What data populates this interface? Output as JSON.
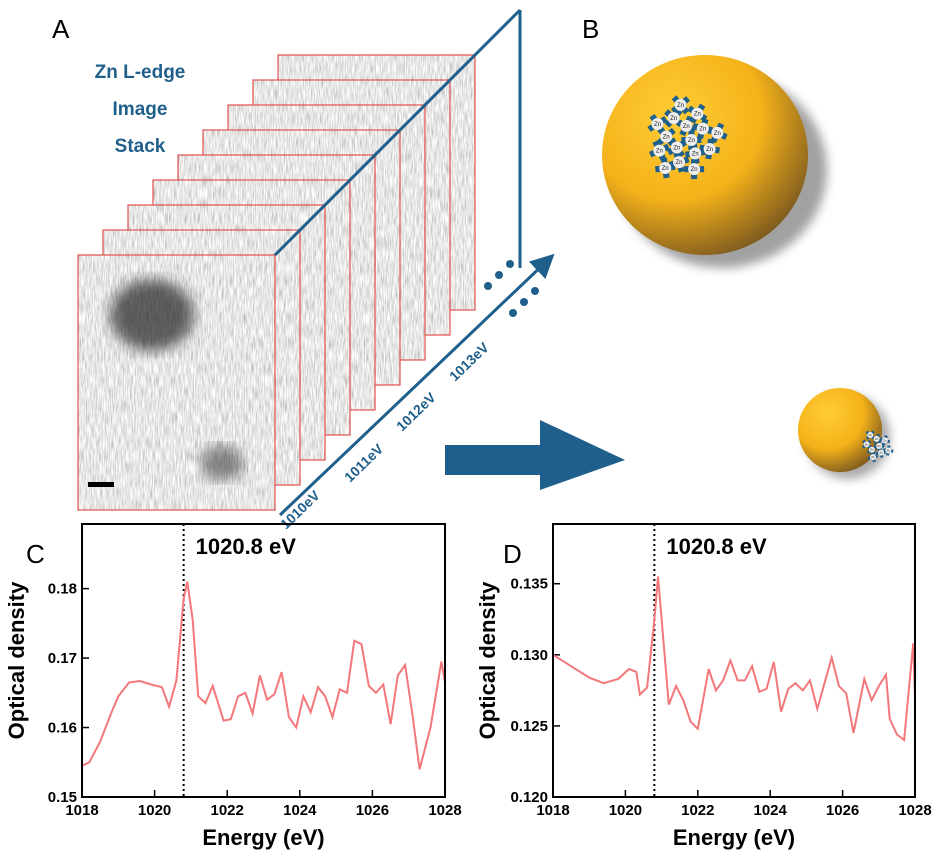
{
  "panels": {
    "a": "A",
    "b": "B",
    "c": "C",
    "d": "D"
  },
  "stack": {
    "title": [
      "Zn L-edge",
      "Image",
      "Stack"
    ],
    "energies": [
      "1010eV",
      "1011eV",
      "1012eV",
      "1013eV"
    ]
  },
  "cluster_label": "Zn",
  "chart_data": [
    {
      "type": "line",
      "ylabel": "Optical density",
      "xlabel": "Energy (eV)",
      "color": "#f4777a",
      "xlim": [
        1018,
        1028
      ],
      "ylim": [
        0.15,
        0.1893
      ],
      "xticks": [
        1018,
        1020,
        1022,
        1024,
        1026,
        1028
      ],
      "yticks": [
        0.15,
        0.16,
        0.17,
        0.18
      ],
      "annotation": {
        "value": 1020.8,
        "label": "1020.8 eV"
      },
      "x": [
        1018.0,
        1018.2,
        1018.5,
        1018.8,
        1019.0,
        1019.3,
        1019.6,
        1019.9,
        1020.2,
        1020.4,
        1020.6,
        1020.8,
        1020.9,
        1021.05,
        1021.2,
        1021.4,
        1021.6,
        1021.9,
        1022.1,
        1022.3,
        1022.5,
        1022.7,
        1022.9,
        1023.1,
        1023.3,
        1023.5,
        1023.7,
        1023.9,
        1024.1,
        1024.3,
        1024.5,
        1024.7,
        1024.9,
        1025.1,
        1025.3,
        1025.5,
        1025.7,
        1025.9,
        1026.1,
        1026.3,
        1026.5,
        1026.7,
        1026.9,
        1027.1,
        1027.3,
        1027.6,
        1027.9,
        1028.0
      ],
      "values": [
        0.1545,
        0.155,
        0.158,
        0.162,
        0.1645,
        0.1665,
        0.1667,
        0.1662,
        0.1658,
        0.163,
        0.1668,
        0.1785,
        0.181,
        0.1755,
        0.1645,
        0.1635,
        0.166,
        0.161,
        0.1612,
        0.1645,
        0.165,
        0.162,
        0.1675,
        0.164,
        0.1648,
        0.168,
        0.1615,
        0.16,
        0.1645,
        0.1622,
        0.1658,
        0.1645,
        0.1615,
        0.1655,
        0.165,
        0.1725,
        0.172,
        0.166,
        0.165,
        0.1662,
        0.1605,
        0.1675,
        0.169,
        0.162,
        0.154,
        0.16,
        0.1695,
        0.1665
      ]
    },
    {
      "type": "line",
      "ylabel": "Optical density",
      "xlabel": "Energy (eV)",
      "color": "#f4777a",
      "xlim": [
        1018,
        1028
      ],
      "ylim": [
        0.12,
        0.1392
      ],
      "xticks": [
        1018,
        1020,
        1022,
        1024,
        1026,
        1028
      ],
      "yticks": [
        {
          "value": 0.12,
          "label": "0.120"
        },
        {
          "value": 0.125,
          "label": "0.125"
        },
        {
          "value": 0.13,
          "label": "0.130"
        },
        {
          "value": 0.135,
          "label": "0.135"
        }
      ],
      "annotation": {
        "value": 1020.8,
        "label": "1020.8 eV"
      },
      "x": [
        1018.0,
        1018.5,
        1019.0,
        1019.4,
        1019.8,
        1020.1,
        1020.3,
        1020.4,
        1020.6,
        1020.8,
        1020.9,
        1021.05,
        1021.2,
        1021.4,
        1021.6,
        1021.8,
        1022.0,
        1022.3,
        1022.5,
        1022.7,
        1022.9,
        1023.1,
        1023.3,
        1023.5,
        1023.7,
        1023.9,
        1024.1,
        1024.3,
        1024.5,
        1024.7,
        1024.9,
        1025.1,
        1025.3,
        1025.5,
        1025.7,
        1025.9,
        1026.1,
        1026.3,
        1026.6,
        1026.8,
        1027.0,
        1027.2,
        1027.3,
        1027.5,
        1027.7,
        1027.95,
        1028.0
      ],
      "values": [
        0.13,
        0.1292,
        0.1284,
        0.128,
        0.1283,
        0.129,
        0.1288,
        0.1272,
        0.1277,
        0.1325,
        0.1355,
        0.131,
        0.1265,
        0.1278,
        0.1268,
        0.1253,
        0.1248,
        0.129,
        0.1275,
        0.1282,
        0.1296,
        0.1282,
        0.1282,
        0.1292,
        0.1274,
        0.1276,
        0.1295,
        0.126,
        0.1276,
        0.128,
        0.1275,
        0.1282,
        0.1262,
        0.128,
        0.1298,
        0.1278,
        0.1273,
        0.1245,
        0.1283,
        0.1268,
        0.1278,
        0.1286,
        0.1255,
        0.1244,
        0.124,
        0.1308,
        0.127
      ]
    }
  ]
}
